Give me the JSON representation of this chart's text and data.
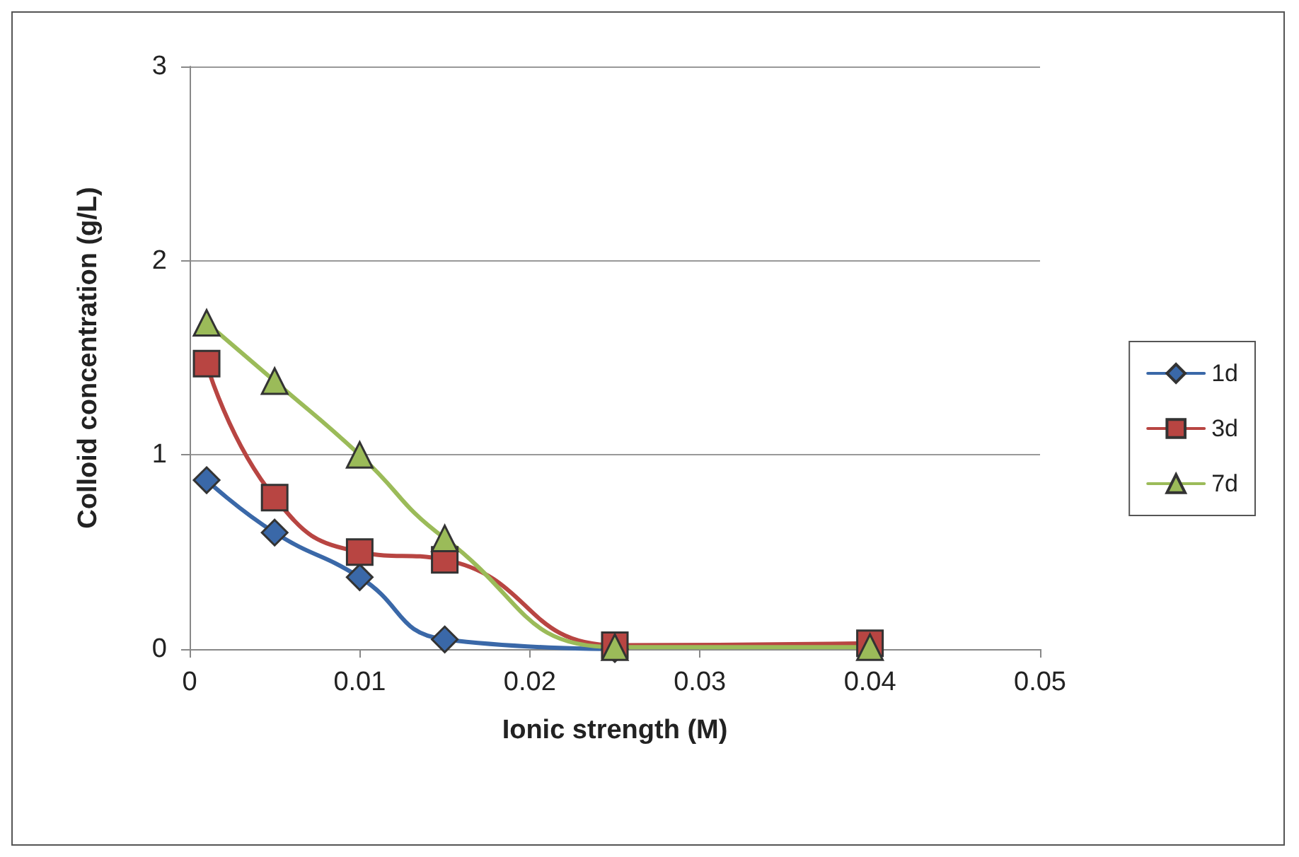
{
  "chart_data": {
    "type": "line",
    "xlabel": "Ionic strength (M)",
    "ylabel": "Colloid concentration (g/L)",
    "x": [
      0.001,
      0.005,
      0.01,
      0.015,
      0.025,
      0.04
    ],
    "series": [
      {
        "name": "1d",
        "color": "#3a68a8",
        "marker": "diamond",
        "values": [
          0.87,
          0.6,
          0.37,
          0.05,
          0,
          null
        ]
      },
      {
        "name": "3d",
        "color": "#b84542",
        "marker": "square",
        "values": [
          1.47,
          0.78,
          0.5,
          0.46,
          0.02,
          0.03
        ]
      },
      {
        "name": "7d",
        "color": "#9bbb59",
        "marker": "triangle",
        "values": [
          1.68,
          1.38,
          1,
          0.57,
          0.01,
          0.01
        ]
      }
    ],
    "xlim": [
      0,
      0.05
    ],
    "xticks": [
      0,
      0.01,
      0.02,
      0.03,
      0.04,
      0.05
    ],
    "ylim": [
      0,
      3
    ],
    "yticks": [
      0,
      1,
      2,
      3
    ],
    "grid": "y",
    "legend": "right"
  }
}
